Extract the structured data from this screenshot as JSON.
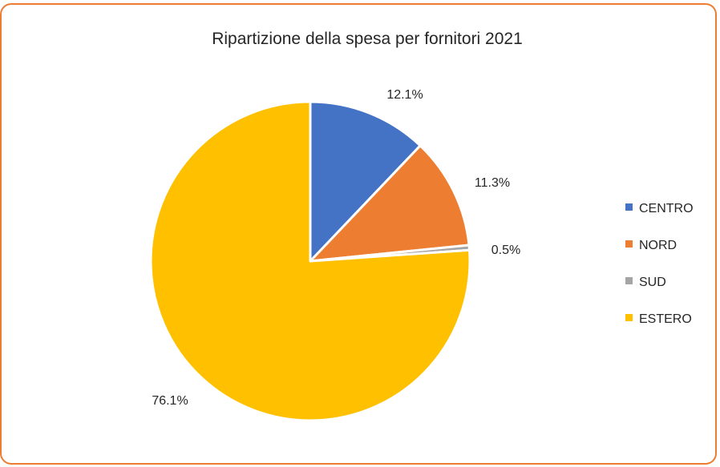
{
  "chart_data": {
    "type": "pie",
    "title": "Ripartizione della spesa per fornitori 2021",
    "categories": [
      "CENTRO",
      "NORD",
      "SUD",
      "ESTERO"
    ],
    "values": [
      12.1,
      11.3,
      0.5,
      76.1
    ],
    "data_labels": [
      "12.1%",
      "11.3%",
      "0.5%",
      "76.1%"
    ],
    "colors": [
      "#4472C4",
      "#ED7D31",
      "#A5A5A5",
      "#FFC000"
    ],
    "legend_position": "right",
    "start_angle": "12 o'clock, clockwise"
  },
  "frame": {
    "border_color": "#ED7D31"
  }
}
